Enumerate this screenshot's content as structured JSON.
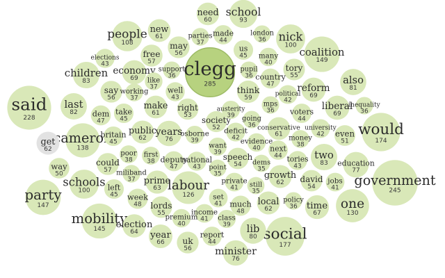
{
  "chart_data": {
    "type": "bubble",
    "colors": {
      "fill": "#d9e8b8",
      "highlight": "#b7d27f",
      "grey": "#e2e2e2"
    },
    "bubbles": [
      {
        "word": "clegg",
        "count": 285,
        "style": "highlight"
      },
      {
        "word": "said",
        "count": 228
      },
      {
        "word": "government",
        "count": 245
      },
      {
        "word": "would",
        "count": 174
      },
      {
        "word": "social",
        "count": 177
      },
      {
        "word": "coalition",
        "count": 149
      },
      {
        "word": "party",
        "count": 147
      },
      {
        "word": "mobility",
        "count": 145
      },
      {
        "word": "cameron",
        "count": 138
      },
      {
        "word": "one",
        "count": 130
      },
      {
        "word": "labour",
        "count": 126
      },
      {
        "word": "people",
        "count": 108
      },
      {
        "word": "nick",
        "count": 100
      },
      {
        "word": "schools",
        "count": 100
      },
      {
        "word": "school",
        "count": 93
      },
      {
        "word": "children",
        "count": 83
      },
      {
        "word": "two",
        "count": 83
      },
      {
        "word": "last",
        "count": 82
      },
      {
        "word": "also",
        "count": 81
      },
      {
        "word": "lib",
        "count": 80
      },
      {
        "word": "education",
        "count": 77
      },
      {
        "word": "years",
        "count": 76
      },
      {
        "word": "minister",
        "count": 76
      },
      {
        "word": "liberal",
        "count": 69
      },
      {
        "word": "economy",
        "count": 69
      },
      {
        "word": "reform",
        "count": 69
      },
      {
        "word": "time",
        "count": 67
      },
      {
        "word": "year",
        "count": 66
      },
      {
        "word": "election",
        "count": 64
      },
      {
        "word": "prime",
        "count": 63
      },
      {
        "word": "public",
        "count": 62
      },
      {
        "word": "local",
        "count": 62
      },
      {
        "word": "growth",
        "count": 62
      },
      {
        "word": "get",
        "count": 62,
        "style": "grey"
      },
      {
        "word": "new",
        "count": 61
      },
      {
        "word": "make",
        "count": 61
      },
      {
        "word": "need",
        "count": 60
      },
      {
        "word": "think",
        "count": 59
      },
      {
        "word": "free",
        "count": 57
      },
      {
        "word": "could",
        "count": 57
      },
      {
        "word": "may",
        "count": 56
      },
      {
        "word": "say",
        "count": 56
      },
      {
        "word": "uk",
        "count": 56
      },
      {
        "word": "tory",
        "count": 55
      },
      {
        "word": "lords",
        "count": 55
      },
      {
        "word": "david",
        "count": 54
      },
      {
        "word": "speech",
        "count": 54
      },
      {
        "word": "right",
        "count": 53
      },
      {
        "word": "society",
        "count": 52
      },
      {
        "word": "even",
        "count": 51
      },
      {
        "word": "way",
        "count": 50
      },
      {
        "word": "much",
        "count": 48
      },
      {
        "word": "week",
        "count": 48
      },
      {
        "word": "dem",
        "count": 47
      },
      {
        "word": "country",
        "count": 47
      },
      {
        "word": "deputy",
        "count": 47
      },
      {
        "word": "made",
        "count": 44
      },
      {
        "word": "take",
        "count": 45
      },
      {
        "word": "britain",
        "count": 45
      },
      {
        "word": "left",
        "count": 45
      },
      {
        "word": "well",
        "count": 43
      },
      {
        "word": "us",
        "count": 45
      },
      {
        "word": "elections",
        "count": 43
      },
      {
        "word": "tories",
        "count": 43
      },
      {
        "word": "voters",
        "count": 44
      },
      {
        "word": "national",
        "count": 43
      },
      {
        "word": "report",
        "count": 44
      },
      {
        "word": "political",
        "count": 42
      },
      {
        "word": "university",
        "count": 42
      },
      {
        "word": "conservative",
        "count": 61
      },
      {
        "word": "many",
        "count": 40
      },
      {
        "word": "evidence",
        "count": 40
      },
      {
        "word": "money",
        "count": 38
      },
      {
        "word": "poor",
        "count": 38
      },
      {
        "word": "first",
        "count": 38
      },
      {
        "word": "miliband",
        "count": 37
      },
      {
        "word": "want",
        "count": 39
      },
      {
        "word": "austerity",
        "count": 39
      },
      {
        "word": "class",
        "count": 39
      },
      {
        "word": "osborne",
        "count": 39
      },
      {
        "word": "pupil",
        "count": 36
      },
      {
        "word": "like",
        "count": 37
      },
      {
        "word": "working",
        "count": 37
      },
      {
        "word": "parties",
        "count": 37
      },
      {
        "word": "support",
        "count": 36
      },
      {
        "word": "london",
        "count": 36
      },
      {
        "word": "mps",
        "count": 36
      },
      {
        "word": "inequality",
        "count": 36
      },
      {
        "word": "going",
        "count": 36
      },
      {
        "word": "next",
        "count": 44
      },
      {
        "word": "dems",
        "count": 35
      },
      {
        "word": "still",
        "count": 35
      },
      {
        "word": "point",
        "count": 35
      },
      {
        "word": "policy",
        "count": 36
      },
      {
        "word": "deficit",
        "count": 42
      },
      {
        "word": "private",
        "count": 41
      },
      {
        "word": "set",
        "count": 41
      },
      {
        "word": "income",
        "count": 41
      },
      {
        "word": "premium",
        "count": 40
      },
      {
        "word": "jobs",
        "count": 41
      }
    ]
  }
}
